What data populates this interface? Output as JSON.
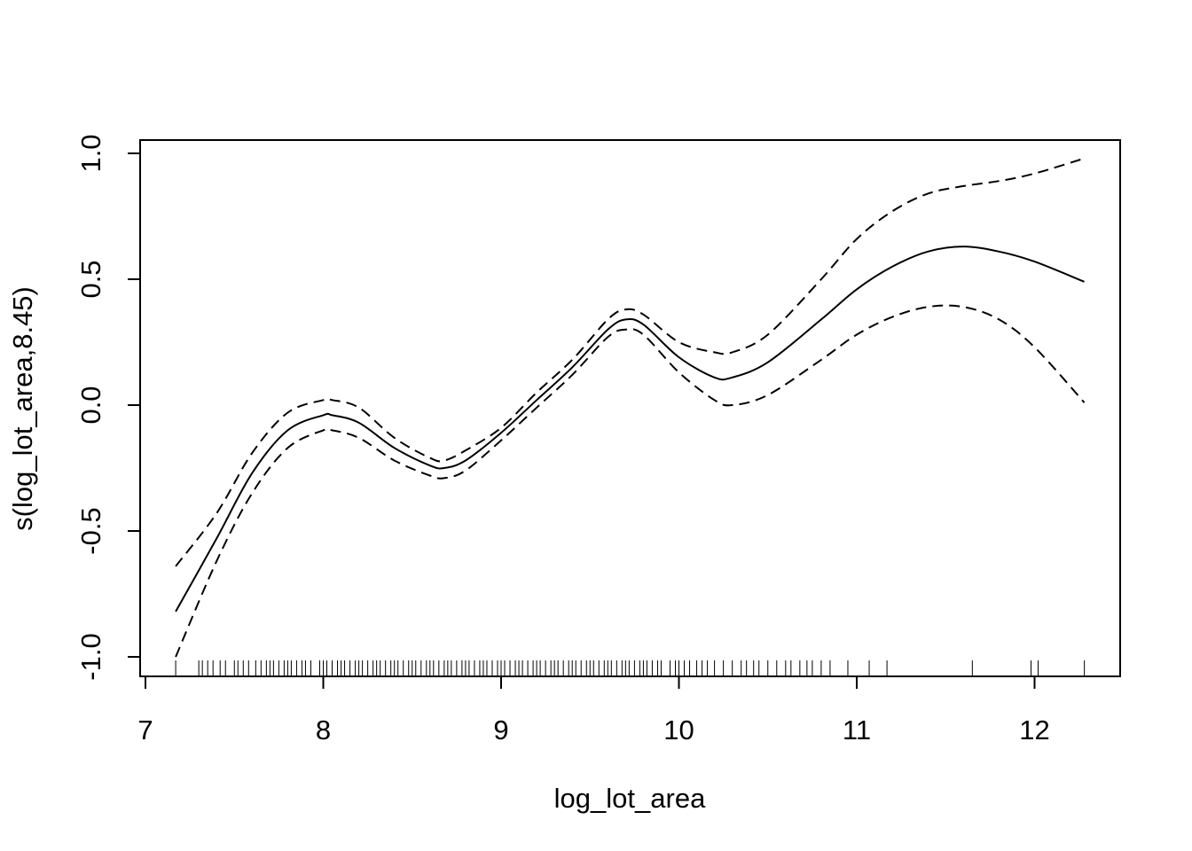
{
  "chart_data": {
    "type": "line",
    "xlabel": "log_lot_area",
    "ylabel": "s(log_lot_area,8.45)",
    "xlim": [
      7.0,
      12.5
    ],
    "ylim": [
      -1.05,
      1.05
    ],
    "x_ticks": [
      "7",
      "8",
      "9",
      "10",
      "11",
      "12"
    ],
    "y_ticks": [
      "-1.0",
      "-0.5",
      "0.0",
      "0.5",
      "1.0"
    ],
    "grid": false,
    "series": [
      {
        "role": "fit",
        "style": "solid",
        "x": [
          7.17,
          7.4,
          7.6,
          7.8,
          8.0,
          8.05,
          8.2,
          8.4,
          8.6,
          8.68,
          8.8,
          9.0,
          9.2,
          9.4,
          9.6,
          9.7,
          9.8,
          10.0,
          10.2,
          10.3,
          10.5,
          10.8,
          11.0,
          11.2,
          11.4,
          11.6,
          11.8,
          12.0,
          12.28
        ],
        "y": [
          -0.82,
          -0.53,
          -0.27,
          -0.1,
          -0.04,
          -0.04,
          -0.07,
          -0.17,
          -0.24,
          -0.25,
          -0.22,
          -0.11,
          0.02,
          0.15,
          0.3,
          0.34,
          0.32,
          0.19,
          0.11,
          0.11,
          0.17,
          0.34,
          0.46,
          0.55,
          0.61,
          0.63,
          0.61,
          0.57,
          0.49
        ]
      },
      {
        "role": "upper-band",
        "style": "dashed",
        "x": [
          7.17,
          7.4,
          7.6,
          7.8,
          8.0,
          8.05,
          8.2,
          8.4,
          8.6,
          8.68,
          8.8,
          9.0,
          9.2,
          9.4,
          9.6,
          9.7,
          9.8,
          10.0,
          10.2,
          10.3,
          10.5,
          10.8,
          11.0,
          11.2,
          11.4,
          11.6,
          11.8,
          12.0,
          12.28
        ],
        "y": [
          -0.64,
          -0.43,
          -0.19,
          -0.03,
          0.02,
          0.02,
          -0.01,
          -0.13,
          -0.21,
          -0.22,
          -0.18,
          -0.09,
          0.05,
          0.18,
          0.34,
          0.38,
          0.36,
          0.25,
          0.21,
          0.21,
          0.28,
          0.5,
          0.66,
          0.77,
          0.84,
          0.87,
          0.89,
          0.92,
          0.98
        ]
      },
      {
        "role": "lower-band",
        "style": "dashed",
        "x": [
          7.17,
          7.4,
          7.6,
          7.8,
          8.0,
          8.05,
          8.2,
          8.4,
          8.6,
          8.68,
          8.8,
          9.0,
          9.2,
          9.4,
          9.6,
          9.7,
          9.8,
          10.0,
          10.2,
          10.3,
          10.5,
          10.8,
          11.0,
          11.2,
          11.4,
          11.6,
          11.8,
          12.0,
          12.28
        ],
        "y": [
          -1.0,
          -0.62,
          -0.35,
          -0.17,
          -0.1,
          -0.1,
          -0.13,
          -0.22,
          -0.28,
          -0.29,
          -0.26,
          -0.14,
          -0.01,
          0.12,
          0.27,
          0.3,
          0.28,
          0.13,
          0.02,
          0.0,
          0.04,
          0.18,
          0.28,
          0.35,
          0.39,
          0.39,
          0.34,
          0.23,
          0.01
        ]
      }
    ],
    "rug": [
      7.17,
      7.3,
      7.32,
      7.35,
      7.38,
      7.42,
      7.45,
      7.5,
      7.52,
      7.55,
      7.58,
      7.62,
      7.65,
      7.68,
      7.7,
      7.72,
      7.75,
      7.78,
      7.8,
      7.82,
      7.85,
      7.88,
      7.9,
      7.93,
      7.98,
      8.0,
      8.02,
      8.05,
      8.08,
      8.1,
      8.12,
      8.15,
      8.18,
      8.2,
      8.22,
      8.25,
      8.28,
      8.3,
      8.32,
      8.35,
      8.38,
      8.4,
      8.42,
      8.45,
      8.48,
      8.5,
      8.52,
      8.55,
      8.58,
      8.6,
      8.62,
      8.65,
      8.68,
      8.7,
      8.72,
      8.75,
      8.78,
      8.8,
      8.82,
      8.85,
      8.88,
      8.9,
      8.92,
      8.95,
      8.98,
      9.0,
      9.02,
      9.05,
      9.08,
      9.1,
      9.12,
      9.15,
      9.18,
      9.2,
      9.22,
      9.25,
      9.28,
      9.3,
      9.32,
      9.35,
      9.38,
      9.4,
      9.42,
      9.45,
      9.48,
      9.5,
      9.52,
      9.55,
      9.58,
      9.6,
      9.62,
      9.65,
      9.68,
      9.7,
      9.72,
      9.75,
      9.78,
      9.8,
      9.82,
      9.85,
      9.88,
      9.9,
      9.95,
      9.98,
      10.0,
      10.03,
      10.06,
      10.1,
      10.13,
      10.16,
      10.2,
      10.25,
      10.3,
      10.35,
      10.38,
      10.42,
      10.45,
      10.5,
      10.55,
      10.6,
      10.63,
      10.68,
      10.72,
      10.75,
      10.8,
      10.85,
      10.95,
      11.07,
      11.17,
      11.65,
      11.98,
      12.02,
      12.28
    ]
  }
}
